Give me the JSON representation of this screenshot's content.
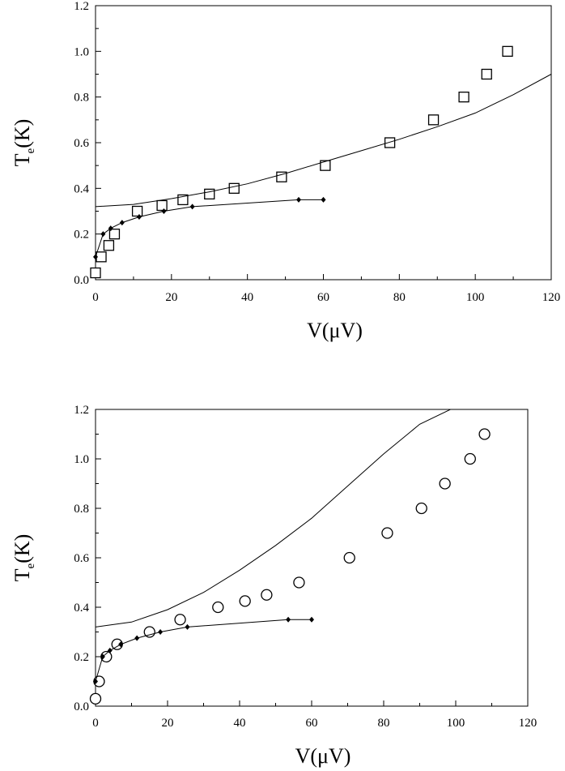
{
  "chart_data": [
    {
      "type": "scatter",
      "title": "",
      "xlabel": "V(μV)",
      "ylabel_main": "T",
      "ylabel_sub": "e",
      "ylabel_tail": "(K)",
      "xlim": [
        0,
        120
      ],
      "ylim": [
        0.0,
        1.2
      ],
      "x_ticks": [
        "0",
        "20",
        "40",
        "60",
        "80",
        "100",
        "120"
      ],
      "y_ticks": [
        "0.0",
        "0.2",
        "0.4",
        "0.6",
        "0.8",
        "1.0",
        "1.2"
      ],
      "grid": false,
      "legend": "none",
      "series": [
        {
          "marker": "square",
          "x": [
            0,
            1.5,
            3.5,
            5,
            11,
            17.5,
            23,
            30,
            36.5,
            49,
            60.5,
            77.5,
            89,
            97,
            103,
            108.5
          ],
          "y": [
            0.03,
            0.1,
            0.15,
            0.2,
            0.3,
            0.325,
            0.35,
            0.375,
            0.4,
            0.45,
            0.5,
            0.6,
            0.7,
            0.8,
            0.9,
            1.0
          ]
        },
        {
          "marker": "none",
          "x": [
            0,
            10,
            20,
            30,
            40,
            50,
            60,
            70,
            80,
            90,
            100,
            110,
            120
          ],
          "y": [
            0.32,
            0.33,
            0.355,
            0.385,
            0.42,
            0.465,
            0.515,
            0.565,
            0.615,
            0.67,
            0.73,
            0.81,
            0.9
          ]
        },
        {
          "marker": "diamond",
          "x": [
            0,
            2,
            4,
            7,
            11.5,
            18,
            25.5,
            53.5,
            60
          ],
          "y": [
            0.1,
            0.2,
            0.225,
            0.25,
            0.275,
            0.3,
            0.32,
            0.35,
            0.35
          ]
        }
      ]
    },
    {
      "type": "scatter",
      "title": "",
      "xlabel": "V(μV)",
      "ylabel_main": "T",
      "ylabel_sub": "e",
      "ylabel_tail": "(K)",
      "xlim": [
        0,
        120
      ],
      "ylim": [
        0.0,
        1.2
      ],
      "x_ticks": [
        "0",
        "20",
        "40",
        "60",
        "80",
        "100",
        "120"
      ],
      "y_ticks": [
        "0.0",
        "0.2",
        "0.4",
        "0.6",
        "0.8",
        "1.0",
        "1.2"
      ],
      "grid": false,
      "legend": "none",
      "series": [
        {
          "marker": "circle",
          "x": [
            0,
            1,
            3,
            6,
            15,
            23.5,
            34,
            41.5,
            47.5,
            56.5,
            70.5,
            81,
            90.5,
            97,
            104,
            108
          ],
          "y": [
            0.03,
            0.1,
            0.2,
            0.25,
            0.3,
            0.35,
            0.4,
            0.425,
            0.45,
            0.5,
            0.6,
            0.7,
            0.8,
            0.9,
            1.0,
            1.1
          ]
        },
        {
          "marker": "none",
          "x": [
            0,
            10,
            20,
            30,
            40,
            50,
            60,
            70,
            80,
            90,
            100,
            107
          ],
          "y": [
            0.32,
            0.34,
            0.39,
            0.46,
            0.55,
            0.65,
            0.76,
            0.89,
            1.02,
            1.14,
            1.21,
            1.28
          ]
        },
        {
          "marker": "diamond",
          "x": [
            0,
            2,
            4,
            7,
            11.5,
            18,
            25.5,
            53.5,
            60
          ],
          "y": [
            0.1,
            0.2,
            0.225,
            0.25,
            0.275,
            0.3,
            0.32,
            0.35,
            0.35
          ]
        }
      ]
    }
  ]
}
